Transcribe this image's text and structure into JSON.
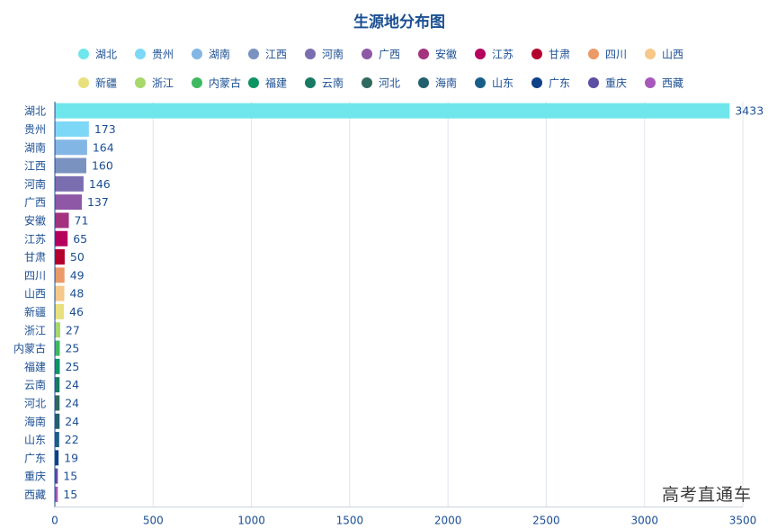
{
  "chart_data": {
    "type": "bar",
    "orientation": "horizontal",
    "title": "生源地分布图",
    "categories": [
      "湖北",
      "贵州",
      "湖南",
      "江西",
      "河南",
      "广西",
      "安徽",
      "江苏",
      "甘肃",
      "四川",
      "山西",
      "新疆",
      "浙江",
      "内蒙古",
      "福建",
      "云南",
      "河北",
      "海南",
      "山东",
      "广东",
      "重庆",
      "西藏"
    ],
    "values": [
      3433,
      173,
      164,
      160,
      146,
      137,
      71,
      65,
      50,
      49,
      48,
      46,
      27,
      25,
      25,
      24,
      24,
      24,
      22,
      19,
      15,
      15
    ],
    "colors": [
      "#6fe6ec",
      "#7dd8f7",
      "#82b6e5",
      "#7a92c0",
      "#7b6eb0",
      "#8e58a6",
      "#a3327f",
      "#b5005e",
      "#b4002f",
      "#ea9a67",
      "#f6c88a",
      "#e7e07d",
      "#a6d86a",
      "#3fb960",
      "#0d9463",
      "#187a63",
      "#30695e",
      "#235f6e",
      "#195e88",
      "#0f3f88",
      "#5b4ea3",
      "#a659b9"
    ],
    "xlim": [
      0,
      3500
    ],
    "xticks": [
      0,
      500,
      1000,
      1500,
      2000,
      2500,
      3000,
      3500
    ],
    "grid": true,
    "legend_position": "top"
  },
  "watermark": "高考直通车"
}
